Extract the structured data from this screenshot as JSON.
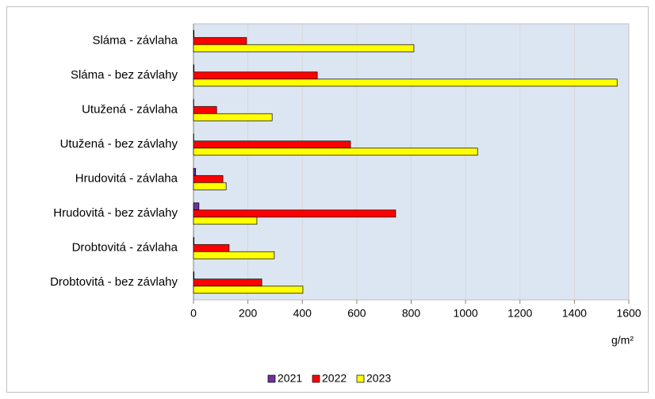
{
  "chart_data": {
    "type": "bar",
    "orientation": "horizontal",
    "categories": [
      "Sláma - závlaha",
      "Sláma - bez závlahy",
      "Utužená - závlaha",
      "Utužená - bez závlahy",
      "Hrudovitá - závlaha",
      "Hrudovitá - bez závlahy",
      "Drobtovitá - závlaha",
      "Drobtovitá - bez závlahy"
    ],
    "series": [
      {
        "name": "2021",
        "color": "#7030a0",
        "values": [
          2,
          2,
          1,
          1,
          8,
          20,
          2,
          2
        ]
      },
      {
        "name": "2022",
        "color": "#ff0000",
        "values": [
          195,
          455,
          85,
          577,
          108,
          743,
          131,
          251
        ]
      },
      {
        "name": "2023",
        "color": "#ffff00",
        "values": [
          810,
          1557,
          289,
          1044,
          120,
          233,
          297,
          402
        ]
      }
    ],
    "x_label": "g/m²",
    "xlim": [
      0,
      1600
    ],
    "xticks": [
      0,
      200,
      400,
      600,
      800,
      1000,
      1200,
      1400,
      1600
    ],
    "grid": true,
    "legend": "bottom"
  }
}
